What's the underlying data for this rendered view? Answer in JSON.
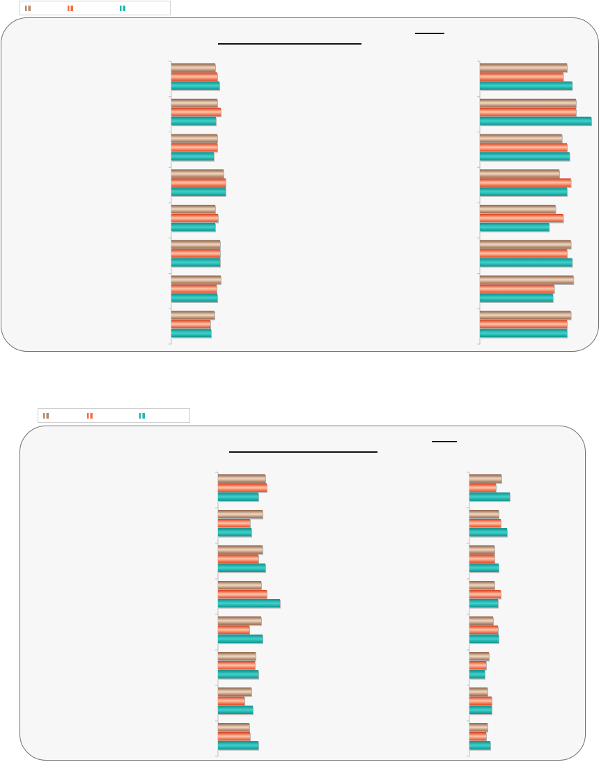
{
  "charts": [
    {
      "legend": {
        "series": [
          {
            "name": "",
            "color": "#b48a6e"
          },
          {
            "name": "",
            "color": "#ff6a3d"
          },
          {
            "name": "",
            "color": "#1fb5b0"
          }
        ]
      }
    },
    {
      "legend": {
        "series": [
          {
            "name": "",
            "color": "#b48a6e"
          },
          {
            "name": "",
            "color": "#ff6a3d"
          },
          {
            "name": "",
            "color": "#1fb5b0"
          }
        ]
      }
    }
  ],
  "chart_data": [
    {
      "type": "bar",
      "orientation": "horizontal",
      "title": "",
      "panels": [
        {
          "categories": [
            "",
            "",
            "",
            "",
            "",
            "",
            "",
            ""
          ],
          "series": [
            {
              "values": [
                63,
                66,
                66,
                75,
                63,
                70,
                71,
                62
              ]
            },
            {
              "values": [
                66,
                71,
                66,
                78,
                67,
                70,
                65,
                56
              ]
            },
            {
              "values": [
                69,
                64,
                61,
                78,
                63,
                70,
                66,
                57
              ]
            }
          ],
          "xlim": [
            0,
            235
          ]
        },
        {
          "categories": [
            "",
            "",
            "",
            "",
            "",
            "",
            "",
            ""
          ],
          "series": [
            {
              "values": [
                68,
                75,
                64,
                62,
                59,
                71,
                73,
                71
              ]
            },
            {
              "values": [
                65,
                75,
                68,
                71,
                65,
                68,
                58,
                68
              ]
            },
            {
              "values": [
                72,
                87,
                70,
                68,
                54,
                72,
                57,
                68
              ]
            }
          ],
          "xlim": [
            0,
            100
          ]
        }
      ]
    },
    {
      "type": "bar",
      "orientation": "horizontal",
      "title": "",
      "panels": [
        {
          "categories": [
            "",
            "",
            "",
            "",
            "",
            "",
            "",
            ""
          ],
          "series": [
            {
              "values": [
                68,
                64,
                64,
                62,
                62,
                54,
                48,
                45
              ]
            },
            {
              "values": [
                70,
                46,
                58,
                70,
                45,
                53,
                38,
                46
              ]
            },
            {
              "values": [
                58,
                48,
                68,
                89,
                64,
                58,
                50,
                58
              ]
            }
          ],
          "xlim": [
            0,
            200
          ]
        },
        {
          "categories": [
            "",
            "",
            "",
            "",
            "",
            "",
            "",
            ""
          ],
          "series": [
            {
              "values": [
                46,
                42,
                36,
                36,
                34,
                28,
                26,
                26
              ]
            },
            {
              "values": [
                38,
                45,
                36,
                45,
                41,
                24,
                32,
                24
              ]
            },
            {
              "values": [
                58,
                54,
                42,
                41,
                42,
                22,
                32,
                30
              ]
            }
          ],
          "xlim": [
            0,
            160
          ]
        }
      ]
    }
  ]
}
